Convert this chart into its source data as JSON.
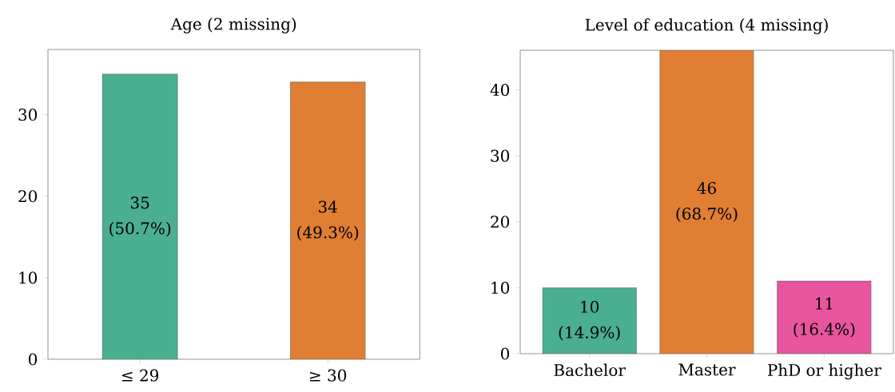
{
  "chart_data": [
    {
      "type": "bar",
      "title": "Age (2 missing)",
      "categories": [
        "≤ 29",
        "≥ 30"
      ],
      "values": [
        35,
        34
      ],
      "colors": [
        "#4aaf91",
        "#e07f34"
      ],
      "value_labels": [
        "35 (50.7%)",
        "34 (49.3%)"
      ],
      "ylim": [
        0,
        38
      ],
      "yticks": [
        0,
        10,
        20,
        30
      ]
    },
    {
      "type": "bar",
      "title": "Level of education (4 missing)",
      "categories": [
        "Bachelor",
        "Master",
        "PhD or higher"
      ],
      "values": [
        10,
        46,
        11
      ],
      "colors": [
        "#4aaf91",
        "#e07f34",
        "#e8559f"
      ],
      "value_labels": [
        "10 (14.9%)",
        "46 (68.7%)",
        "11 (16.4%)"
      ],
      "ylim": [
        0,
        46
      ],
      "yticks": [
        0,
        10,
        20,
        30,
        40
      ]
    }
  ]
}
